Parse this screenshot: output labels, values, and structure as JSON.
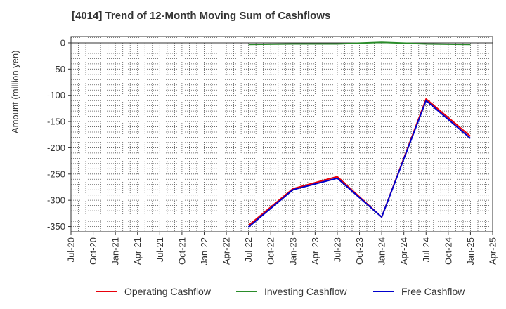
{
  "chart_data": {
    "type": "line",
    "title": "[4014]  Trend of 12-Month Moving Sum of Cashflows",
    "xlabel": "",
    "ylabel": "Amount (million yen)",
    "x_tick_labels": [
      "Jul-20",
      "Oct-20",
      "Jan-21",
      "Apr-21",
      "Jul-21",
      "Oct-21",
      "Jan-22",
      "Apr-22",
      "Jul-22",
      "Oct-22",
      "Jan-23",
      "Apr-23",
      "Jul-23",
      "Oct-23",
      "Jan-24",
      "Apr-24",
      "Jul-24",
      "Oct-24",
      "Jan-25",
      "Apr-25"
    ],
    "y_ticks": [
      0,
      -50,
      -100,
      -150,
      -200,
      -250,
      -300,
      -350
    ],
    "ylim": [
      -360,
      12
    ],
    "grid": true,
    "legend_position": "bottom",
    "series": [
      {
        "name": "Operating Cashflow",
        "color": "#e8000b",
        "x": [
          "Jul-22",
          "Jan-23",
          "Jul-23",
          "Jan-24",
          "Jul-24",
          "Jan-25"
        ],
        "values": [
          -348,
          -278,
          -255,
          -332,
          -107,
          -178
        ]
      },
      {
        "name": "Investing Cashflow",
        "color": "#2a8c2a",
        "x": [
          "Jul-22",
          "Jan-23",
          "Jul-23",
          "Jan-24",
          "Jul-24",
          "Jan-25"
        ],
        "values": [
          -3,
          -2,
          -2,
          1,
          -2,
          -3
        ]
      },
      {
        "name": "Free Cashflow",
        "color": "#0000cc",
        "x": [
          "Jul-22",
          "Jan-23",
          "Jul-23",
          "Jan-24",
          "Jul-24",
          "Jan-25"
        ],
        "values": [
          -351,
          -280,
          -258,
          -332,
          -110,
          -182
        ]
      }
    ]
  }
}
